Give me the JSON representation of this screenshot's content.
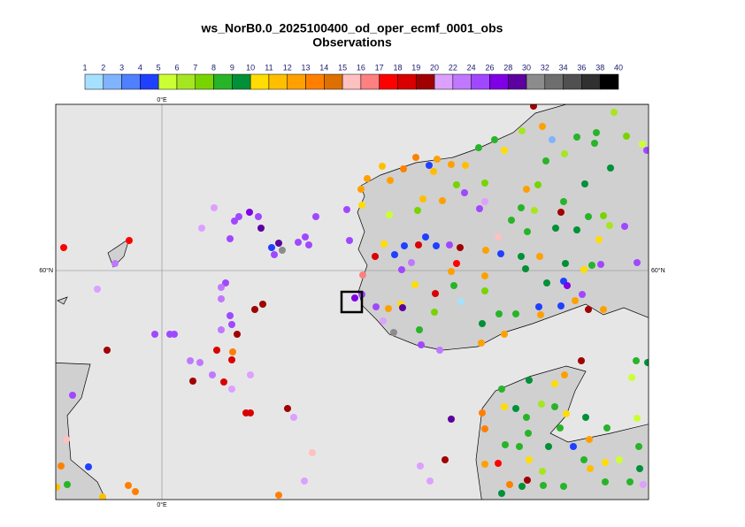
{
  "title": "ws_NorB0.0_2025100400_od_oper_ecmf_0001_obs",
  "subtitle": "Observations",
  "colorbar": {
    "levels": [
      1,
      2,
      3,
      4,
      5,
      6,
      7,
      8,
      9,
      10,
      11,
      12,
      13,
      14,
      15,
      16,
      17,
      18,
      19,
      20,
      22,
      24,
      26,
      28,
      30,
      32,
      34,
      36,
      38,
      40
    ],
    "colors": [
      "#a6e0ff",
      "#80b4ff",
      "#4f80ff",
      "#2040ff",
      "#ccff33",
      "#a6e620",
      "#78d400",
      "#28b428",
      "#009038",
      "#ffdd00",
      "#ffbf00",
      "#ffa000",
      "#ff8000",
      "#dd7000",
      "#ffc0c0",
      "#ff8080",
      "#ff0000",
      "#d80000",
      "#a00000",
      "#dda0ff",
      "#c078ff",
      "#a048ff",
      "#8000e6",
      "#5c00a0",
      "#8c8c8c",
      "#6e6e6e",
      "#505050",
      "#303030",
      "#000000"
    ]
  },
  "map": {
    "xlim": [
      -2.4,
      11.0
    ],
    "ylim": [
      54.82,
      63.76
    ],
    "lon_line": 0,
    "lat_line": 60,
    "lon_label": "0°E",
    "lat_label": "60°N",
    "sea_color": "#e6e6e6",
    "land_color": "#d0d0d0"
  },
  "points": [
    [
      -2.22,
      60.52,
      17.5
    ],
    [
      -0.74,
      60.68,
      17.5
    ],
    [
      -1.06,
      60.16,
      23
    ],
    [
      -1.46,
      59.58,
      21
    ],
    [
      1.18,
      61.42,
      21
    ],
    [
      1.64,
      61.12,
      25
    ],
    [
      1.74,
      61.22,
      25
    ],
    [
      1.98,
      61.32,
      27
    ],
    [
      2.18,
      61.22,
      25
    ],
    [
      2.24,
      60.96,
      29
    ],
    [
      3.48,
      61.22,
      25
    ],
    [
      0.9,
      60.96,
      21
    ],
    [
      1.54,
      60.72,
      25
    ],
    [
      2.48,
      60.52,
      4.5
    ],
    [
      2.64,
      60.62,
      29
    ],
    [
      2.72,
      60.46,
      31
    ],
    [
      2.54,
      60.36,
      25
    ],
    [
      3.24,
      60.76,
      25
    ],
    [
      3.08,
      60.64,
      25
    ],
    [
      3.32,
      60.58,
      25
    ],
    [
      4.18,
      61.38,
      25
    ],
    [
      4.24,
      60.68,
      25
    ],
    [
      1.44,
      59.72,
      25
    ],
    [
      1.34,
      59.62,
      23
    ],
    [
      1.34,
      59.36,
      23
    ],
    [
      1.54,
      58.98,
      25
    ],
    [
      1.58,
      58.78,
      25
    ],
    [
      2.1,
      59.12,
      19.5
    ],
    [
      2.28,
      59.24,
      19.5
    ],
    [
      1.7,
      58.56,
      19.5
    ],
    [
      1.34,
      58.66,
      23
    ],
    [
      -0.16,
      58.56,
      25
    ],
    [
      0.18,
      58.56,
      25
    ],
    [
      0.28,
      58.56,
      25
    ],
    [
      -1.24,
      58.2,
      19.5
    ],
    [
      -2.02,
      57.18,
      25
    ],
    [
      0.64,
      57.96,
      23
    ],
    [
      0.86,
      57.92,
      23
    ],
    [
      1.24,
      58.2,
      18
    ],
    [
      1.6,
      58.16,
      13
    ],
    [
      1.58,
      57.98,
      18
    ],
    [
      1.14,
      57.64,
      23
    ],
    [
      0.7,
      57.5,
      19.5
    ],
    [
      1.4,
      57.48,
      18
    ],
    [
      1.58,
      57.32,
      21
    ],
    [
      2.0,
      57.64,
      21
    ],
    [
      1.9,
      56.78,
      18
    ],
    [
      2.0,
      56.78,
      18
    ],
    [
      2.84,
      56.88,
      19.5
    ],
    [
      2.98,
      56.68,
      21
    ],
    [
      3.4,
      55.88,
      15.5
    ],
    [
      3.22,
      55.24,
      21
    ],
    [
      2.64,
      54.92,
      13
    ],
    [
      -2.16,
      56.18,
      15.5
    ],
    [
      -2.28,
      55.58,
      13
    ],
    [
      -1.66,
      55.56,
      4.5
    ],
    [
      -2.38,
      55.1,
      11.5
    ],
    [
      -2.14,
      55.16,
      8.5
    ],
    [
      -1.34,
      54.88,
      11
    ],
    [
      -0.76,
      55.14,
      13
    ],
    [
      -0.6,
      55.0,
      13
    ],
    [
      4.36,
      59.38,
      27
    ],
    [
      4.52,
      59.46,
      25
    ],
    [
      4.54,
      59.9,
      16.5
    ],
    [
      4.52,
      61.48,
      10.5
    ],
    [
      4.5,
      61.84,
      12.5
    ],
    [
      4.64,
      62.08,
      12.5
    ],
    [
      4.98,
      62.36,
      11.5
    ],
    [
      5.16,
      62.04,
      12.5
    ],
    [
      5.46,
      62.3,
      13
    ],
    [
      5.74,
      62.56,
      13
    ],
    [
      6.04,
      62.38,
      4.5
    ],
    [
      6.14,
      62.24,
      11
    ],
    [
      6.22,
      62.52,
      12.5
    ],
    [
      6.54,
      62.4,
      12.5
    ],
    [
      6.86,
      62.38,
      11.5
    ],
    [
      5.14,
      61.26,
      5.5
    ],
    [
      5.78,
      61.36,
      7.5
    ],
    [
      5.9,
      61.62,
      11
    ],
    [
      6.34,
      61.58,
      12.5
    ],
    [
      6.66,
      61.94,
      7.5
    ],
    [
      6.84,
      61.76,
      25
    ],
    [
      7.16,
      62.78,
      8.5
    ],
    [
      7.3,
      61.98,
      7.5
    ],
    [
      7.52,
      62.96,
      8.5
    ],
    [
      7.74,
      62.72,
      10.5
    ],
    [
      8.14,
      63.16,
      6
    ],
    [
      8.4,
      63.72,
      19.5
    ],
    [
      8.6,
      63.26,
      12.5
    ],
    [
      8.82,
      62.96,
      2.5
    ],
    [
      9.38,
      63.02,
      8.5
    ],
    [
      9.82,
      63.12,
      8.5
    ],
    [
      9.78,
      62.88,
      8.5
    ],
    [
      10.22,
      63.58,
      6
    ],
    [
      10.5,
      63.04,
      7.5
    ],
    [
      10.86,
      62.86,
      5.5
    ],
    [
      10.96,
      62.72,
      25
    ],
    [
      9.1,
      62.64,
      6
    ],
    [
      8.5,
      61.94,
      7.5
    ],
    [
      8.68,
      62.48,
      8.5
    ],
    [
      8.24,
      61.84,
      12.5
    ],
    [
      8.12,
      61.42,
      8
    ],
    [
      8.42,
      61.36,
      6
    ],
    [
      10.14,
      62.32,
      9
    ],
    [
      9.56,
      61.96,
      9
    ],
    [
      9.02,
      61.32,
      19.5
    ],
    [
      9.08,
      61.56,
      8.5
    ],
    [
      9.64,
      61.22,
      8.5
    ],
    [
      9.98,
      61.24,
      7.5
    ],
    [
      10.12,
      61.02,
      6
    ],
    [
      7.18,
      61.4,
      25
    ],
    [
      7.3,
      61.56,
      21
    ],
    [
      7.9,
      61.14,
      8.5
    ],
    [
      7.6,
      60.76,
      15.5
    ],
    [
      8.26,
      60.88,
      8
    ],
    [
      8.9,
      60.96,
      9
    ],
    [
      9.38,
      60.92,
      9
    ],
    [
      10.46,
      61.0,
      25
    ],
    [
      9.88,
      60.7,
      10.5
    ],
    [
      9.12,
      60.16,
      9
    ],
    [
      8.54,
      60.32,
      12.5
    ],
    [
      8.22,
      60.04,
      9
    ],
    [
      8.12,
      60.32,
      9
    ],
    [
      7.66,
      60.38,
      4
    ],
    [
      7.32,
      60.46,
      12.5
    ],
    [
      6.66,
      60.16,
      17
    ],
    [
      6.5,
      60.58,
      25
    ],
    [
      6.74,
      60.52,
      19.5
    ],
    [
      6.2,
      60.56,
      4.5
    ],
    [
      5.96,
      60.76,
      4
    ],
    [
      5.8,
      60.58,
      18
    ],
    [
      5.48,
      60.56,
      4
    ],
    [
      5.26,
      60.36,
      4
    ],
    [
      5.64,
      60.18,
      23
    ],
    [
      4.82,
      60.32,
      18
    ],
    [
      5.02,
      60.6,
      10
    ],
    [
      5.42,
      60.02,
      25
    ],
    [
      6.54,
      59.98,
      12.5
    ],
    [
      6.6,
      59.66,
      8.5
    ],
    [
      6.18,
      59.48,
      18
    ],
    [
      6.16,
      59.06,
      7.5
    ],
    [
      5.72,
      59.68,
      10.5
    ],
    [
      5.4,
      59.24,
      10.5
    ],
    [
      7.3,
      59.88,
      12.5
    ],
    [
      7.3,
      59.54,
      7.5
    ],
    [
      6.76,
      59.3,
      1.5
    ],
    [
      7.24,
      58.8,
      9
    ],
    [
      7.62,
      59.02,
      8.5
    ],
    [
      8.0,
      59.02,
      8.5
    ],
    [
      8.56,
      59.0,
      12
    ],
    [
      8.7,
      59.72,
      9
    ],
    [
      8.52,
      59.18,
      4
    ],
    [
      9.02,
      59.2,
      4.5
    ],
    [
      9.08,
      59.76,
      4.5
    ],
    [
      9.16,
      59.66,
      27
    ],
    [
      9.54,
      60.02,
      10.5
    ],
    [
      9.72,
      60.12,
      8.5
    ],
    [
      9.92,
      60.14,
      25
    ],
    [
      10.74,
      60.18,
      25
    ],
    [
      9.64,
      59.12,
      19.5
    ],
    [
      9.34,
      59.32,
      12.5
    ],
    [
      9.98,
      59.12,
      12.5
    ],
    [
      9.5,
      59.46,
      25
    ],
    [
      5.82,
      58.66,
      8.5
    ],
    [
      5.86,
      58.32,
      25
    ],
    [
      6.28,
      58.2,
      23
    ],
    [
      7.22,
      58.36,
      12.5
    ],
    [
      7.74,
      58.56,
      12.5
    ],
    [
      5.24,
      58.6,
      31
    ],
    [
      5.0,
      58.86,
      21
    ],
    [
      4.84,
      59.18,
      25
    ],
    [
      5.44,
      59.16,
      29
    ],
    [
      5.12,
      59.14,
      12.5
    ],
    [
      10.72,
      57.96,
      8.5
    ],
    [
      10.98,
      57.92,
      9
    ],
    [
      10.62,
      57.58,
      5.5
    ],
    [
      9.48,
      57.96,
      19.5
    ],
    [
      9.1,
      57.64,
      12.5
    ],
    [
      8.88,
      57.44,
      10.5
    ],
    [
      8.3,
      57.52,
      9
    ],
    [
      7.68,
      57.32,
      8.5
    ],
    [
      7.24,
      56.78,
      13
    ],
    [
      7.3,
      56.42,
      13
    ],
    [
      7.74,
      56.92,
      10.5
    ],
    [
      8.0,
      56.88,
      9
    ],
    [
      8.24,
      56.68,
      8.5
    ],
    [
      8.28,
      56.32,
      8
    ],
    [
      8.58,
      56.98,
      6
    ],
    [
      8.88,
      56.92,
      8.5
    ],
    [
      9.14,
      56.76,
      10.5
    ],
    [
      9.0,
      56.44,
      8.5
    ],
    [
      9.58,
      56.68,
      9
    ],
    [
      9.66,
      56.18,
      12.5
    ],
    [
      10.06,
      56.44,
      8.5
    ],
    [
      10.74,
      56.66,
      5.5
    ],
    [
      6.54,
      56.64,
      28.5
    ],
    [
      7.76,
      56.06,
      8
    ],
    [
      8.08,
      56.02,
      8.5
    ],
    [
      8.3,
      55.72,
      10.5
    ],
    [
      8.6,
      55.46,
      6
    ],
    [
      8.74,
      56.02,
      9
    ],
    [
      9.3,
      56.02,
      4
    ],
    [
      9.54,
      55.72,
      8
    ],
    [
      9.68,
      55.52,
      11
    ],
    [
      10.02,
      55.66,
      10.5
    ],
    [
      10.34,
      55.72,
      5.5
    ],
    [
      10.78,
      56.02,
      8
    ],
    [
      10.8,
      55.52,
      9
    ],
    [
      10.58,
      55.22,
      8.5
    ],
    [
      10.02,
      55.22,
      8
    ],
    [
      9.08,
      55.12,
      8.5
    ],
    [
      8.62,
      55.14,
      8.5
    ],
    [
      8.14,
      55.12,
      9
    ],
    [
      7.86,
      55.16,
      13
    ],
    [
      7.68,
      54.96,
      9
    ],
    [
      7.6,
      55.64,
      17.5
    ],
    [
      5.84,
      55.58,
      21
    ],
    [
      6.06,
      55.24,
      21
    ],
    [
      6.4,
      55.72,
      19.5
    ],
    [
      7.3,
      55.62,
      12.5
    ],
    [
      8.26,
      55.26,
      19
    ],
    [
      10.88,
      55.16,
      21
    ]
  ]
}
